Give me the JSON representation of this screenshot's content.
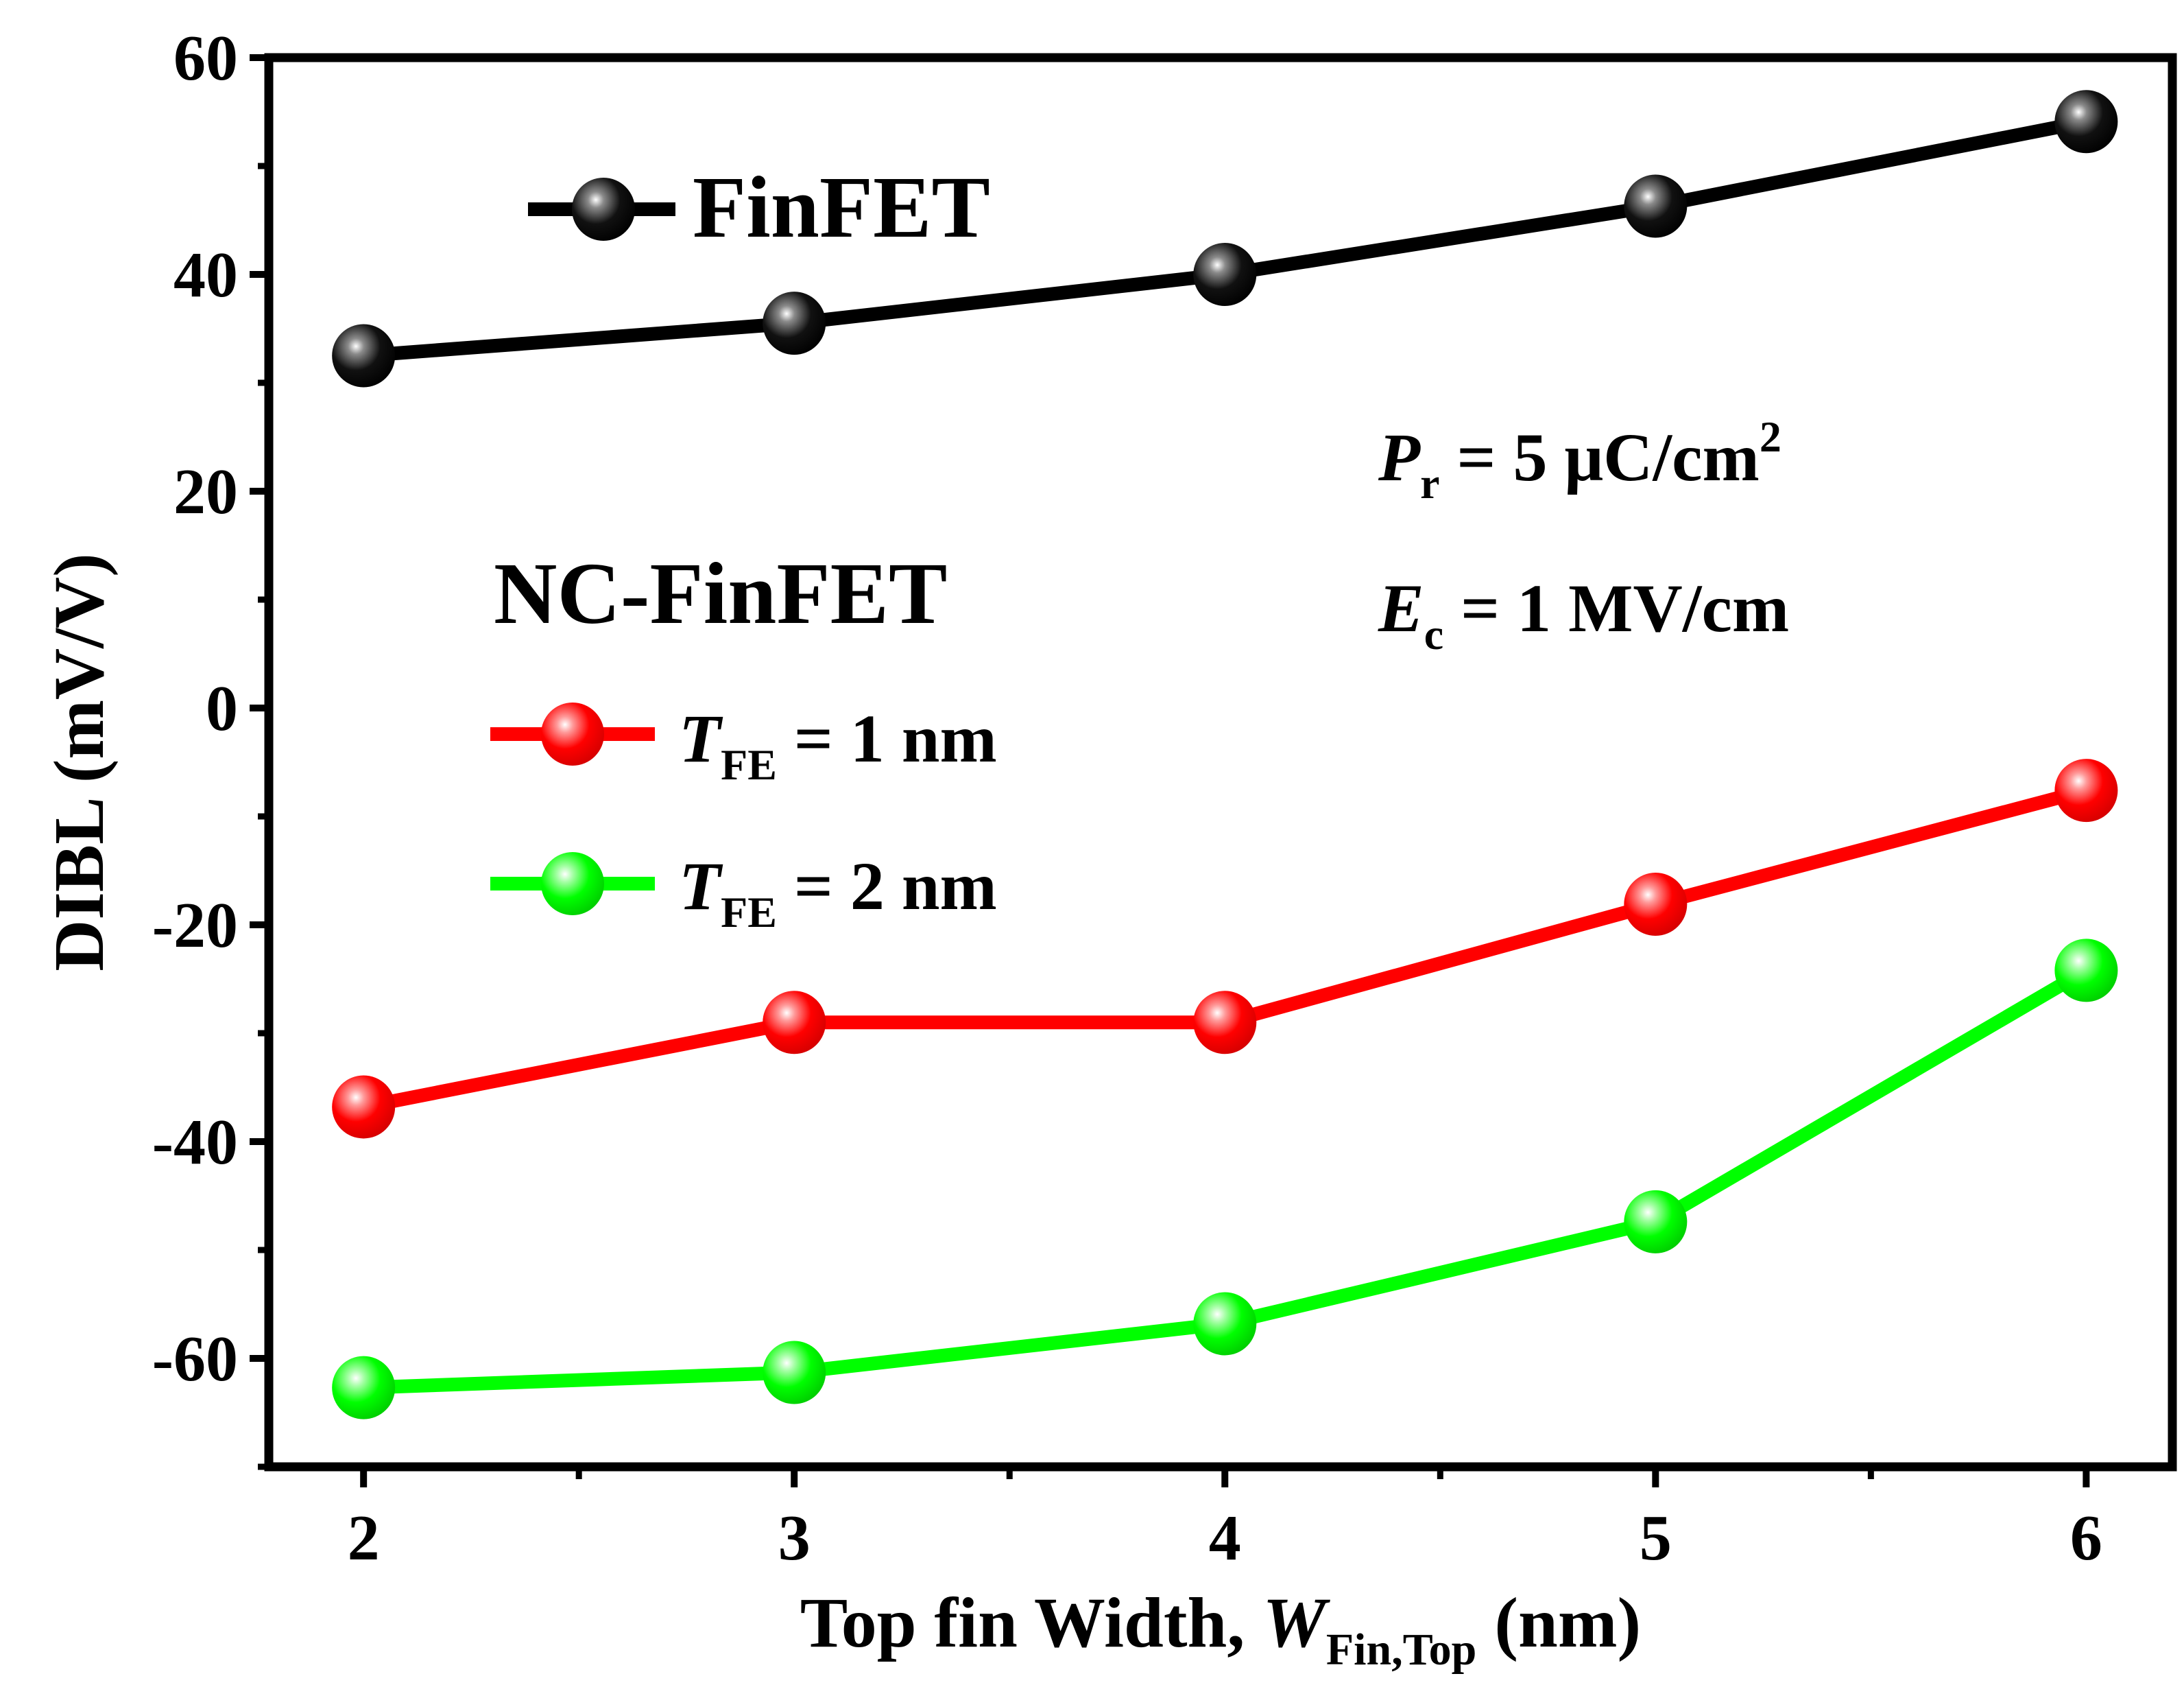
{
  "chart_data": {
    "type": "line",
    "x": [
      2,
      3,
      4,
      5,
      6
    ],
    "xlim": [
      1.78,
      6.2
    ],
    "ylim": [
      -70,
      60
    ],
    "xticks": [
      "2",
      "3",
      "4",
      "5",
      "6"
    ],
    "yticks": [
      "-60",
      "-40",
      "-20",
      "0",
      "20",
      "40",
      "60"
    ],
    "xlabel": {
      "main": "Top fin Width, ",
      "var": "W",
      "sub": "Fin,Top",
      "unit": " (nm)"
    },
    "ylabel": "DIBL (mV/V)",
    "legend_group_title": "NC-FinFET",
    "series": [
      {
        "name": "FinFET",
        "color": "#000000",
        "values": [
          32.5,
          35.5,
          40.0,
          46.3,
          54.1
        ]
      },
      {
        "name_var": "T",
        "name_sub": "FE",
        "name_rest": " = 1 nm",
        "color": "#ff0000",
        "values": [
          -36.8,
          -29.0,
          -29.0,
          -18.1,
          -7.6
        ]
      },
      {
        "name_var": "T",
        "name_sub": "FE",
        "name_rest": " = 2 nm",
        "color": "#00ff00",
        "values": [
          -62.7,
          -61.3,
          -56.8,
          -47.4,
          -24.2
        ]
      }
    ],
    "annotations": [
      {
        "var": "P",
        "sub": "r",
        "rest": " = 5 μC/cm",
        "sup": "2"
      },
      {
        "var": "E",
        "sub": "c",
        "rest": " = 1 MV/cm",
        "sup": ""
      }
    ],
    "grid": false,
    "legend_position": "top-left"
  }
}
